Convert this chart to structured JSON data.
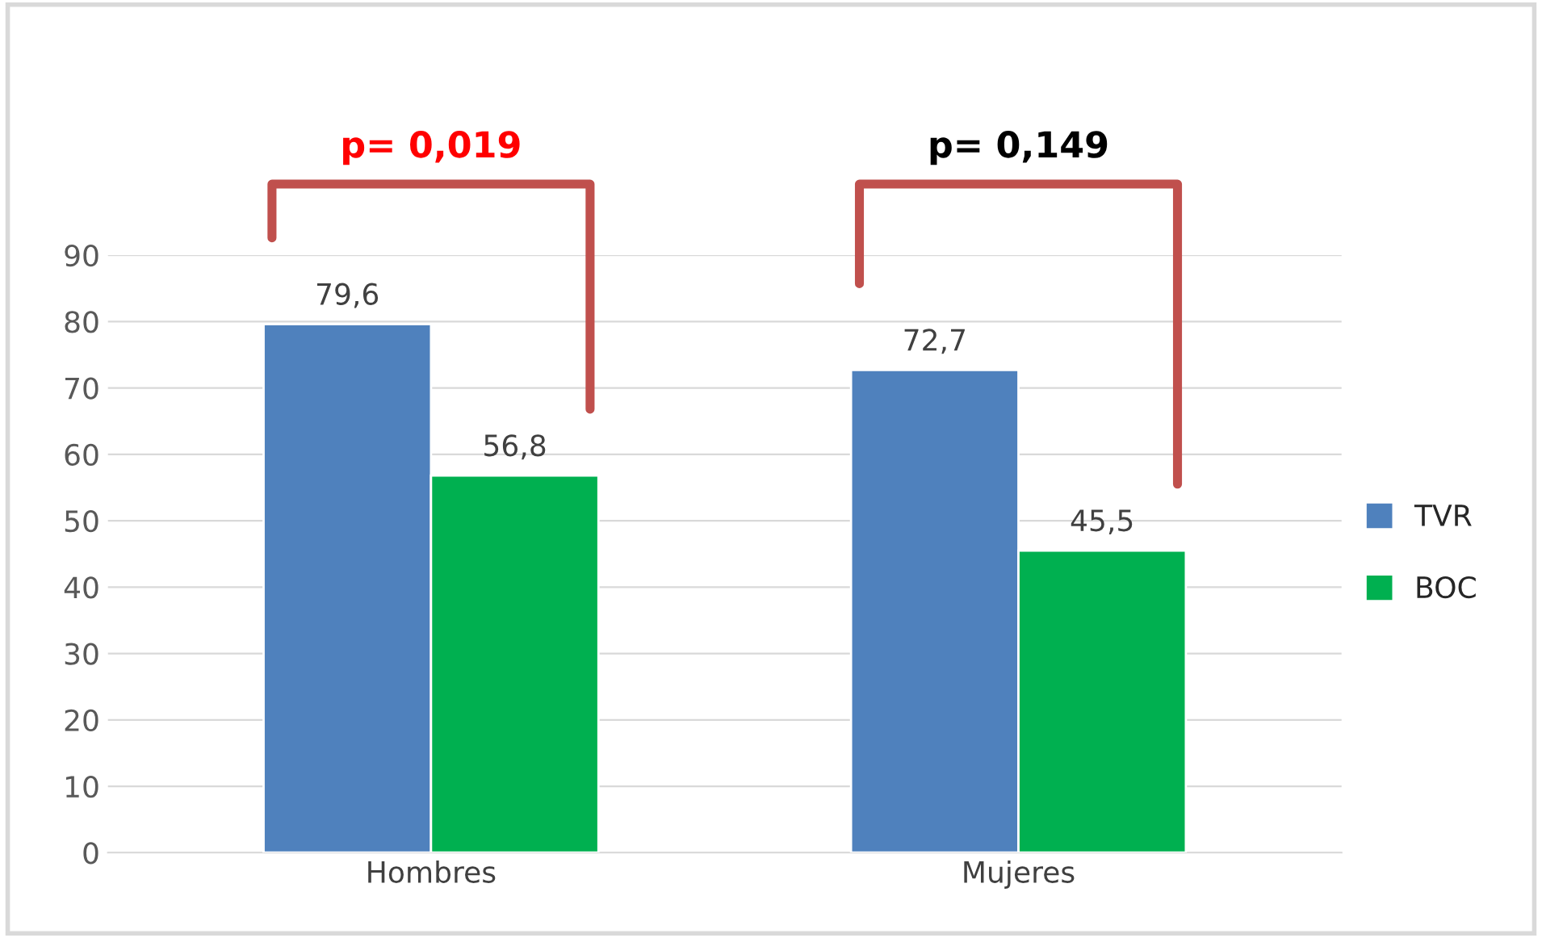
{
  "chart_data": {
    "type": "bar",
    "categories": [
      "Hombres",
      "Mujeres"
    ],
    "series": [
      {
        "name": "TVR",
        "color": "#4f81bd",
        "values": [
          79.6,
          72.7
        ],
        "value_labels": [
          "79,6",
          "72,7"
        ]
      },
      {
        "name": "BOC",
        "color": "#00b050",
        "values": [
          56.8,
          45.5
        ],
        "value_labels": [
          "56,8",
          "45,5"
        ]
      }
    ],
    "ylim": [
      0,
      90
    ],
    "yticks": [
      0,
      10,
      20,
      30,
      40,
      50,
      60,
      70,
      80,
      90
    ],
    "grid": "y",
    "legend": "right",
    "annotations": [
      "p= 0,019",
      "p= 0,149"
    ]
  }
}
